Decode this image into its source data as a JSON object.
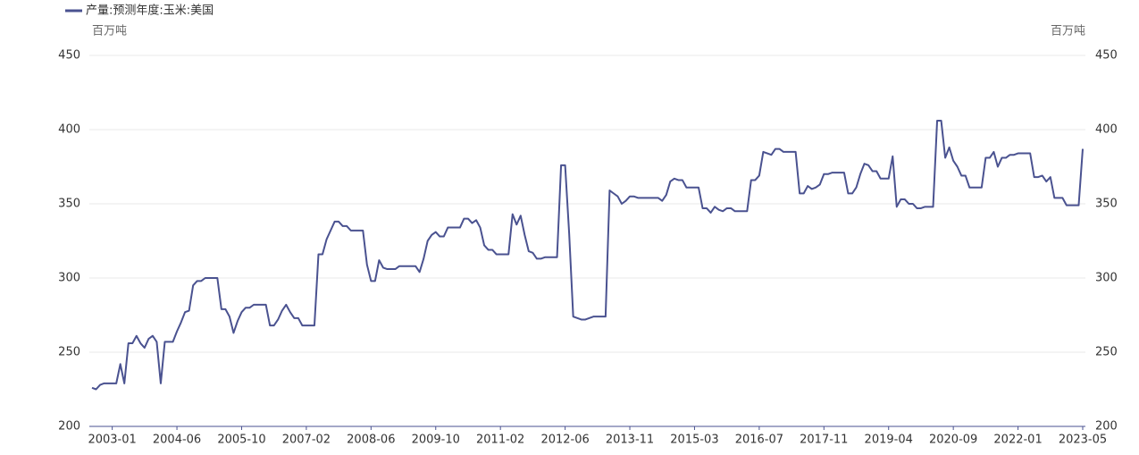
{
  "chart_data": {
    "type": "line",
    "legend": "top-left",
    "y_unit": "百万吨",
    "y2_unit": "百万吨",
    "categories": [
      null,
      null,
      null,
      null,
      null,
      "2003-01",
      null,
      null,
      null,
      null,
      null,
      null,
      null,
      null,
      null,
      null,
      null,
      null,
      null,
      null,
      null,
      "2004-06",
      null,
      null,
      null,
      null,
      null,
      null,
      null,
      null,
      null,
      null,
      null,
      null,
      null,
      null,
      null,
      "2005-10",
      null,
      null,
      null,
      null,
      null,
      null,
      null,
      null,
      null,
      null,
      null,
      null,
      null,
      null,
      null,
      "2007-02",
      null,
      null,
      null,
      null,
      null,
      null,
      null,
      null,
      null,
      null,
      null,
      null,
      null,
      null,
      null,
      "2008-06",
      null,
      null,
      null,
      null,
      null,
      null,
      null,
      null,
      null,
      null,
      null,
      null,
      null,
      null,
      null,
      "2009-10",
      null,
      null,
      null,
      null,
      null,
      null,
      null,
      null,
      null,
      null,
      null,
      null,
      null,
      null,
      null,
      "2011-02",
      null,
      null,
      null,
      null,
      null,
      null,
      null,
      null,
      null,
      null,
      null,
      null,
      null,
      null,
      null,
      "2012-06",
      null,
      null,
      null,
      null,
      null,
      null,
      null,
      null,
      null,
      null,
      null,
      null,
      null,
      null,
      null,
      "2013-11",
      null,
      null,
      null,
      null,
      null,
      null,
      null,
      null,
      null,
      null,
      null,
      null,
      null,
      null,
      null,
      "2015-03",
      null,
      null,
      null,
      null,
      null,
      null,
      null,
      null,
      null,
      null,
      null,
      null,
      null,
      null,
      null,
      "2016-07",
      null,
      null,
      null,
      null,
      null,
      null,
      null,
      null,
      null,
      null,
      null,
      null,
      null,
      null,
      null,
      "2017-11",
      null,
      null,
      null,
      null,
      null,
      null,
      null,
      null,
      null,
      null,
      null,
      null,
      null,
      null,
      null,
      "2019-04",
      null,
      null,
      null,
      null,
      null,
      null,
      null,
      null,
      null,
      null,
      null,
      null,
      null,
      null,
      null,
      "2020-09",
      null,
      null,
      null,
      null,
      null,
      null,
      null,
      null,
      null,
      null,
      null,
      null,
      null,
      null,
      null,
      "2022-01",
      null,
      null,
      null,
      null,
      null,
      null,
      null,
      null,
      null,
      null,
      null,
      null,
      null,
      null,
      null,
      "2023-05"
    ],
    "series": [
      {
        "name": "产量:预测年度:玉米:美国",
        "color": "#4a5290",
        "values": [
          226,
          225,
          228,
          229,
          229,
          229,
          229,
          242,
          229,
          256,
          256,
          261,
          256,
          253,
          259,
          261,
          257,
          229,
          257,
          257,
          257,
          264,
          270,
          277,
          278,
          295,
          298,
          298,
          300,
          300,
          300,
          300,
          279,
          279,
          274,
          263,
          271,
          277,
          280,
          280,
          282,
          282,
          282,
          282,
          268,
          268,
          272,
          278,
          282,
          277,
          273,
          273,
          268,
          268,
          268,
          268,
          316,
          316,
          326,
          332,
          338,
          338,
          335,
          335,
          332,
          332,
          332,
          332,
          309,
          298,
          298,
          312,
          307,
          306,
          306,
          306,
          308,
          308,
          308,
          308,
          308,
          304,
          313,
          325,
          329,
          331,
          328,
          328,
          334,
          334,
          334,
          334,
          340,
          340,
          337,
          339,
          334,
          322,
          319,
          319,
          316,
          316,
          316,
          316,
          343,
          336,
          342,
          329,
          318,
          317,
          313,
          313,
          314,
          314,
          314,
          314,
          376,
          376,
          330,
          274,
          273,
          272,
          272,
          273,
          274,
          274,
          274,
          274,
          359,
          357,
          355,
          350,
          352,
          355,
          355,
          354,
          354,
          354,
          354,
          354,
          354,
          352,
          356,
          365,
          367,
          366,
          366,
          361,
          361,
          361,
          361,
          347,
          347,
          344,
          348,
          346,
          345,
          347,
          347,
          345,
          345,
          345,
          345,
          366,
          366,
          369,
          385,
          384,
          383,
          387,
          387,
          385,
          385,
          385,
          385,
          357,
          357,
          362,
          360,
          361,
          363,
          370,
          370,
          371,
          371,
          371,
          371,
          357,
          357,
          361,
          370,
          377,
          376,
          372,
          372,
          367,
          367,
          367,
          382,
          348,
          353,
          353,
          350,
          350,
          347,
          347,
          348,
          348,
          348,
          406,
          406,
          381,
          388,
          379,
          375,
          369,
          369,
          361,
          361,
          361,
          361,
          381,
          381,
          385,
          375,
          381,
          381,
          383,
          383,
          384,
          384,
          384,
          384,
          368,
          368,
          369,
          365,
          368,
          354,
          354,
          354,
          349,
          349,
          349,
          349,
          387
        ]
      }
    ],
    "ylim": [
      200,
      450
    ],
    "yticks": [
      200,
      250,
      300,
      350,
      400,
      450
    ],
    "y2lim": [
      200,
      450
    ],
    "y2ticks": [
      200,
      250,
      300,
      350,
      400,
      450
    ],
    "grid": true
  }
}
